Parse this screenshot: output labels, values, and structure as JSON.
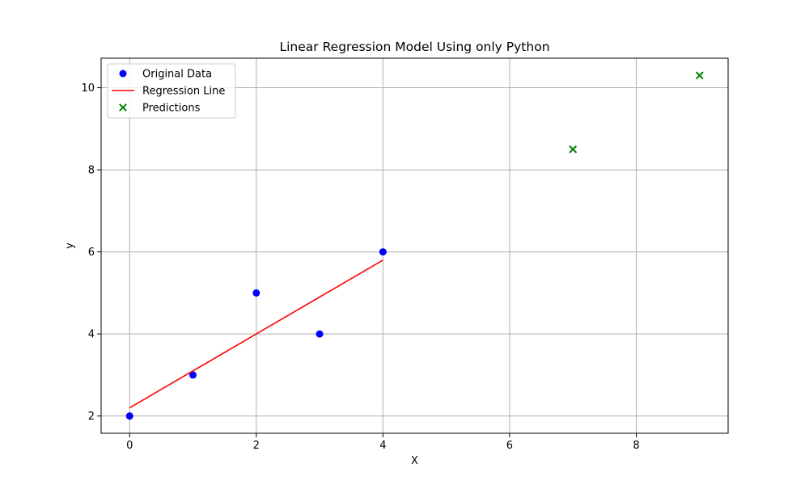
{
  "chart_data": {
    "type": "scatter",
    "title": "Linear Regression Model Using only Python",
    "xlabel": "X",
    "ylabel": "y",
    "xlim": [
      -0.45,
      9.45
    ],
    "ylim": [
      1.58,
      10.72
    ],
    "x_ticks": [
      0,
      2,
      4,
      6,
      8
    ],
    "y_ticks": [
      2,
      4,
      6,
      8,
      10
    ],
    "grid": true,
    "legend_position": "top-left",
    "series": [
      {
        "name": "Original Data",
        "kind": "scatter",
        "marker": "circle",
        "color": "#0000ff",
        "x": [
          0,
          1,
          2,
          3,
          4
        ],
        "y": [
          2,
          3,
          5,
          4,
          6
        ]
      },
      {
        "name": "Regression Line",
        "kind": "line",
        "color": "#ff0000",
        "x": [
          0,
          4
        ],
        "y": [
          2.2,
          5.8
        ]
      },
      {
        "name": "Predictions",
        "kind": "scatter",
        "marker": "x",
        "color": "#008000",
        "x": [
          7,
          9
        ],
        "y": [
          8.5,
          10.3
        ]
      }
    ]
  }
}
